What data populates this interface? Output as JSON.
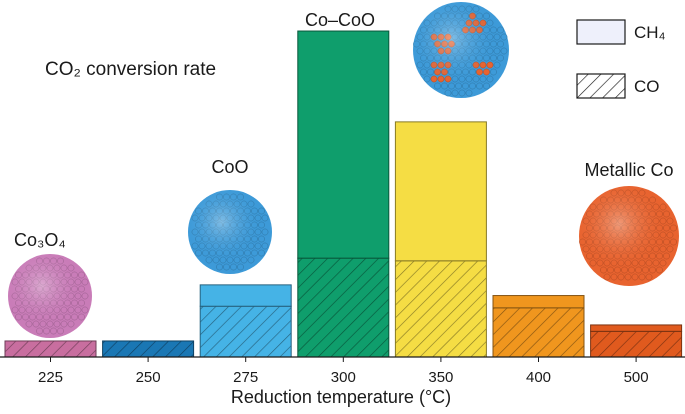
{
  "chart_data": {
    "type": "bar",
    "stacked": true,
    "annotation_title": "CO₂ conversion rate",
    "xlabel": "Reduction temperature (°C)",
    "ylabel": "",
    "categories": [
      "225",
      "250",
      "275",
      "300",
      "350",
      "400",
      "500"
    ],
    "series": [
      {
        "name": "CO",
        "pattern": "hatched",
        "values": [
          3,
          3,
          9.5,
          18.5,
          18,
          9.2,
          4.8
        ]
      },
      {
        "name": "CH₄",
        "pattern": "solid",
        "values": [
          0,
          0,
          4,
          42.5,
          26,
          2.3,
          1.2
        ]
      }
    ],
    "bar_colors": [
      "#c86e9f",
      "#1a77b4",
      "#45b3e6",
      "#0f9e6c",
      "#f5dd44",
      "#f0961e",
      "#e05a1e"
    ],
    "phase_labels": [
      {
        "category": "225",
        "label": "Co₃O₄",
        "particle_color": "#c97cb8"
      },
      {
        "category": "275",
        "label": "CoO",
        "particle_color": "#3d9ad8"
      },
      {
        "category": "300",
        "label": "Co–CoO",
        "particle_color": "#3d9ad8",
        "secondary_color": "#e8632f"
      },
      {
        "category": "500",
        "label": "Metallic Co",
        "particle_color": "#e8632f"
      }
    ],
    "ylim": [
      0,
      64
    ],
    "grid": false,
    "legend_position": "top-right"
  }
}
